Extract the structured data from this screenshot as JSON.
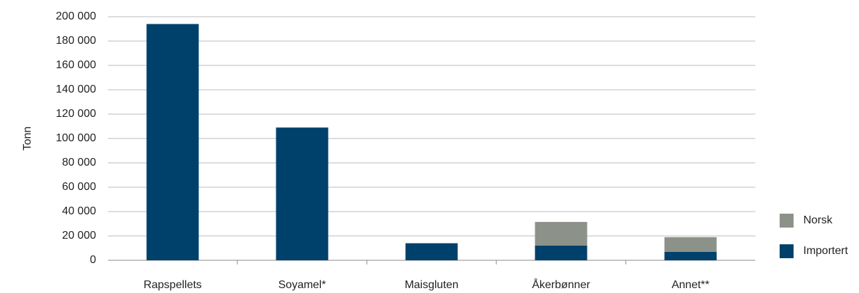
{
  "chart_data": {
    "type": "stacked_bar",
    "y_label": "Tonn",
    "categories": [
      "Rapspellets",
      "Soyamel*",
      "Maisgluten",
      "Åkerbønner",
      "Annet**"
    ],
    "series": [
      {
        "name": "Importert",
        "color": "#00416b",
        "values": [
          194000,
          109000,
          14000,
          12000,
          7000
        ]
      },
      {
        "name": "Norsk",
        "color": "#8c9289",
        "values": [
          0,
          0,
          0,
          19500,
          12000
        ]
      }
    ],
    "ylim": [
      0,
      200000
    ],
    "yticks": [
      0,
      {
        "value": 20000,
        "label": "20 000"
      },
      {
        "value": 40000,
        "label": "40 000"
      },
      {
        "value": 60000,
        "label": "60 000"
      },
      {
        "value": 80000,
        "label": "80 000"
      },
      {
        "value": 100000,
        "label": "100 000"
      },
      {
        "value": 120000,
        "label": "120 000"
      },
      {
        "value": 140000,
        "label": "140 000"
      },
      {
        "value": 160000,
        "label": "160 000"
      },
      {
        "value": 180000,
        "label": "180 000"
      },
      {
        "value": 200000,
        "label": "200 000"
      }
    ],
    "grid": true,
    "legend": "right"
  }
}
